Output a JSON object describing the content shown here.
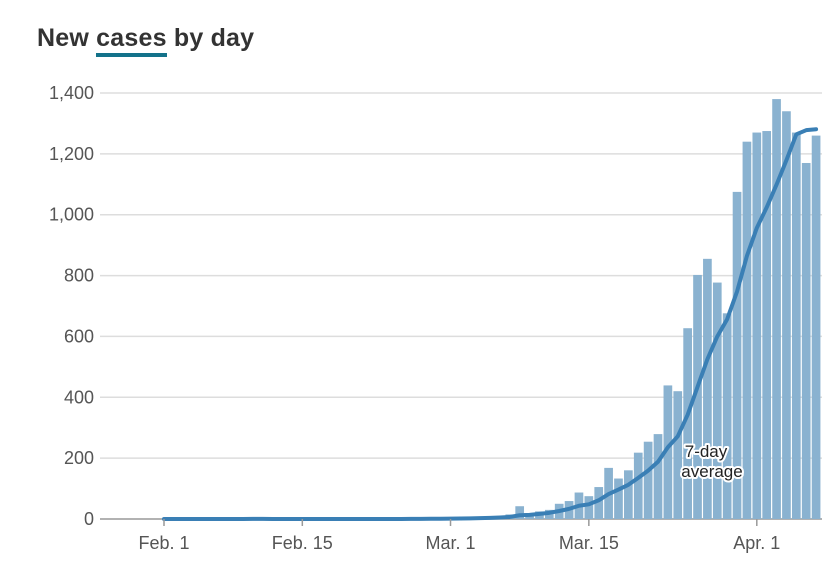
{
  "chart_data": {
    "type": "bar",
    "title_parts": [
      "New",
      "cases",
      "by day"
    ],
    "xlabel": "",
    "ylabel": "",
    "ylim": [
      0,
      1400
    ],
    "yticks": [
      0,
      200,
      400,
      600,
      800,
      1000,
      1200,
      1400
    ],
    "ytick_labels": [
      "0",
      "200",
      "400",
      "600",
      "800",
      "1,000",
      "1,200",
      "1,400"
    ],
    "xtick_labels": [
      "Feb. 1",
      "Feb. 15",
      "Mar. 1",
      "Mar. 15",
      "Apr. 1"
    ],
    "xtick_dates": [
      "2020-02-01",
      "2020-02-15",
      "2020-03-01",
      "2020-03-15",
      "2020-04-01"
    ],
    "grid": true,
    "x_start": "2020-02-01",
    "x_end": "2020-04-07",
    "values": [
      0,
      0,
      0,
      0,
      1,
      0,
      0,
      0,
      0,
      1,
      0,
      0,
      0,
      0,
      0,
      0,
      0,
      0,
      0,
      0,
      0,
      0,
      1,
      0,
      0,
      1,
      1,
      2,
      2,
      3,
      2,
      4,
      5,
      8,
      10,
      15,
      42,
      12,
      25,
      30,
      50,
      59,
      87,
      75,
      105,
      168,
      133,
      160,
      218,
      254,
      279,
      439,
      420,
      627,
      802,
      855,
      777,
      676,
      1075,
      1240,
      1270,
      1275,
      1380,
      1340,
      1270,
      1170,
      1260
    ],
    "series": [
      {
        "kind": "bars",
        "color": "#8ab2d0"
      },
      {
        "kind": "line",
        "window_days": 7,
        "color": "#3a7fb5"
      }
    ],
    "annotation": {
      "line1": "7-day",
      "line2": "average"
    }
  }
}
